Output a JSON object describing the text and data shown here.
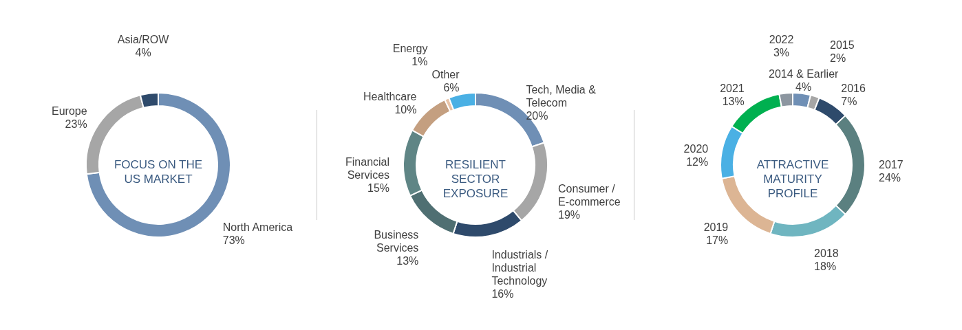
{
  "chart_data": [
    {
      "type": "donut",
      "title": "FOCUS ON THE US MARKET",
      "categories": [
        "North America",
        "Europe",
        "Asia/ROW"
      ],
      "values": [
        73,
        23,
        4
      ],
      "value_labels": [
        "73%",
        "23%",
        "4%"
      ],
      "colors": [
        "#6f8fb5",
        "#a6a6a6",
        "#2e4a6b"
      ]
    },
    {
      "type": "donut",
      "title": "RESILIENT SECTOR EXPOSURE",
      "categories": [
        "Tech, Media & Telecom",
        "Consumer / E-commerce",
        "Industrials / Industrial Technology",
        "Business Services",
        "Financial Services",
        "Healthcare",
        "Energy",
        "Other"
      ],
      "values": [
        20,
        19,
        16,
        13,
        15,
        10,
        1,
        6
      ],
      "value_labels": [
        "20%",
        "19%",
        "16%",
        "13%",
        "15%",
        "10%",
        "1%",
        "6%"
      ],
      "colors": [
        "#6f8fb5",
        "#a6a6a6",
        "#2e4a6b",
        "#4f6f72",
        "#5f8585",
        "#c49f80",
        "#e8c4a8",
        "#4ab0e4"
      ]
    },
    {
      "type": "donut",
      "title": "ATTRACTIVE MATURITY PROFILE",
      "categories": [
        "2014 & Earlier",
        "2015",
        "2016",
        "2017",
        "2018",
        "2019",
        "2020",
        "2021",
        "2022"
      ],
      "values": [
        4,
        2,
        7,
        24,
        18,
        17,
        12,
        13,
        3
      ],
      "value_labels": [
        "4%",
        "2%",
        "7%",
        "24%",
        "18%",
        "17%",
        "12%",
        "13%",
        "3%"
      ],
      "colors": [
        "#6f8fb5",
        "#a6a6a6",
        "#2e4a6b",
        "#5b8080",
        "#6fb5c0",
        "#dcb594",
        "#4ab0e4",
        "#00b050",
        "#8c96a0"
      ]
    }
  ]
}
